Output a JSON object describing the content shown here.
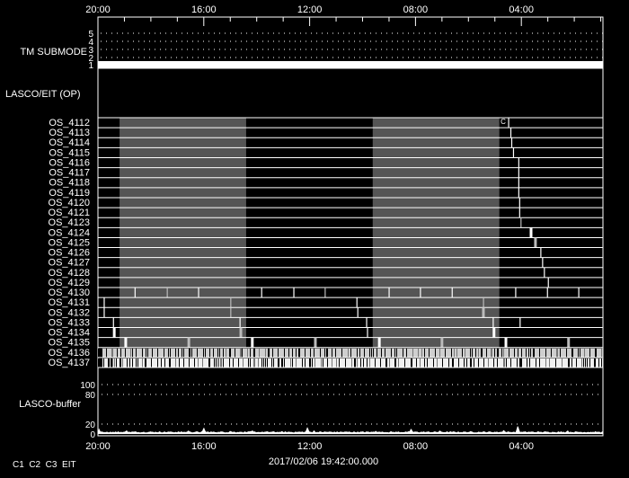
{
  "chart_data": {
    "type": "timeline",
    "time_axis": {
      "start": "20:00",
      "end": "00:55",
      "direction": "decreasing",
      "tick_labels": [
        "20:00",
        "16:00",
        "12:00",
        "08:00",
        "04:00"
      ],
      "minor_tick_hours": 1
    },
    "timestamp": "2017/02/06 19:42:00.000",
    "footer_label": "C1  C2  C3  EIT",
    "tm_submode": {
      "label": "TM SUBMODE",
      "levels": [
        "1",
        "2",
        "3",
        "4",
        "5"
      ],
      "value": 1,
      "grid": "dotted"
    },
    "op_panel": {
      "label": "LASCO/EIT (OP)"
    },
    "shaded_intervals": [
      {
        "from": "19:11",
        "to": "14:24"
      },
      {
        "from": "09:37",
        "to": "04:50"
      }
    ],
    "colors": {
      "background": "#000000",
      "foreground": "#ffffff",
      "shade": "#555555",
      "gray_mark": "#bbbbbb"
    },
    "rows": [
      {
        "name": "OS_4112",
        "marks": [
          {
            "t": "04:29",
            "label": "C"
          }
        ]
      },
      {
        "name": "OS_4113",
        "marks": [
          {
            "t": "04:24"
          }
        ]
      },
      {
        "name": "OS_4114",
        "marks": [
          {
            "t": "04:22"
          }
        ]
      },
      {
        "name": "OS_4115",
        "marks": [
          {
            "t": "04:18"
          }
        ]
      },
      {
        "name": "OS_4116",
        "marks": [
          {
            "t": "04:06"
          }
        ]
      },
      {
        "name": "OS_4117",
        "marks": [
          {
            "t": "04:06"
          }
        ]
      },
      {
        "name": "OS_4118",
        "marks": [
          {
            "t": "04:06"
          }
        ]
      },
      {
        "name": "OS_4119",
        "marks": [
          {
            "t": "04:06"
          }
        ]
      },
      {
        "name": "OS_4120",
        "marks": [
          {
            "t": "04:04"
          }
        ]
      },
      {
        "name": "OS_4121",
        "marks": [
          {
            "t": "04:04"
          }
        ]
      },
      {
        "name": "OS_4123",
        "marks": [
          {
            "t": "04:01",
            "gray": true
          }
        ]
      },
      {
        "name": "OS_4124",
        "marks": [
          {
            "t": "03:38",
            "thick": true
          }
        ]
      },
      {
        "name": "OS_4125",
        "marks": [
          {
            "t": "03:28",
            "thick": true,
            "gray": true
          }
        ]
      },
      {
        "name": "OS_4126",
        "marks": [
          {
            "t": "03:16"
          }
        ]
      },
      {
        "name": "OS_4127",
        "marks": [
          {
            "t": "03:12"
          }
        ]
      },
      {
        "name": "OS_4128",
        "marks": [
          {
            "t": "03:08"
          }
        ]
      },
      {
        "name": "OS_4129",
        "marks": [
          {
            "t": "02:59"
          }
        ]
      },
      {
        "name": "OS_4130",
        "marks": [
          {
            "t": "18:36"
          },
          {
            "t": "17:23",
            "gray": true
          },
          {
            "t": "16:12"
          },
          {
            "t": "13:49"
          },
          {
            "t": "12:36"
          },
          {
            "t": "11:25",
            "gray": true
          },
          {
            "t": "09:00"
          },
          {
            "t": "07:49"
          },
          {
            "t": "06:37"
          },
          {
            "t": "04:13"
          },
          {
            "t": "03:01"
          },
          {
            "t": "01:50"
          }
        ]
      },
      {
        "name": "OS_4131",
        "marks": [
          {
            "t": "19:46"
          },
          {
            "t": "14:59",
            "gray": true
          },
          {
            "t": "10:13"
          },
          {
            "t": "05:26",
            "gray": true
          }
        ]
      },
      {
        "name": "OS_4132",
        "marks": [
          {
            "t": "19:46"
          },
          {
            "t": "14:59",
            "gray": true
          },
          {
            "t": "10:11"
          },
          {
            "t": "05:26",
            "gray": true,
            "thick": true
          }
        ]
      },
      {
        "name": "OS_4133",
        "marks": [
          {
            "t": "19:25"
          },
          {
            "t": "14:38"
          },
          {
            "t": "09:51"
          },
          {
            "t": "05:04"
          },
          {
            "t": "04:03"
          }
        ]
      },
      {
        "name": "OS_4134",
        "marks": [
          {
            "t": "19:23",
            "thick": true
          },
          {
            "t": "14:36",
            "thick": true,
            "gray": true
          },
          {
            "t": "09:49"
          },
          {
            "t": "05:02",
            "thick": true
          }
        ]
      },
      {
        "name": "OS_4135",
        "marks": [
          {
            "t": "18:57",
            "thick": true
          },
          {
            "t": "16:34",
            "gray": true,
            "thick": true
          },
          {
            "t": "14:10",
            "thick": true
          },
          {
            "t": "11:47",
            "gray": true,
            "thick": true
          },
          {
            "t": "09:22",
            "thick": true
          },
          {
            "t": "07:00",
            "gray": true,
            "thick": true
          },
          {
            "t": "04:35",
            "thick": true
          },
          {
            "t": "02:13",
            "gray": true,
            "thick": true
          }
        ]
      },
      {
        "name": "OS_4136",
        "dense": true
      },
      {
        "name": "OS_4137",
        "dense": true
      }
    ],
    "buffer": {
      "label": "LASCO-buffer",
      "tick_labels": [
        "0",
        "20",
        "80",
        "100"
      ],
      "ylim": [
        0,
        100
      ],
      "dotted_levels": [
        20,
        80,
        100
      ],
      "baseline": 3,
      "spikes": [
        {
          "t": "19:58",
          "v": 12
        },
        {
          "t": "18:55",
          "v": 8
        },
        {
          "t": "16:35",
          "v": 8
        },
        {
          "t": "16:00",
          "v": 14
        },
        {
          "t": "15:00",
          "v": 7
        },
        {
          "t": "14:10",
          "v": 8
        },
        {
          "t": "12:05",
          "v": 15
        },
        {
          "t": "11:50",
          "v": 8
        },
        {
          "t": "09:30",
          "v": 7
        },
        {
          "t": "08:10",
          "v": 12
        },
        {
          "t": "07:05",
          "v": 8
        },
        {
          "t": "04:40",
          "v": 9
        },
        {
          "t": "04:08",
          "v": 18
        },
        {
          "t": "02:15",
          "v": 8
        }
      ]
    }
  }
}
